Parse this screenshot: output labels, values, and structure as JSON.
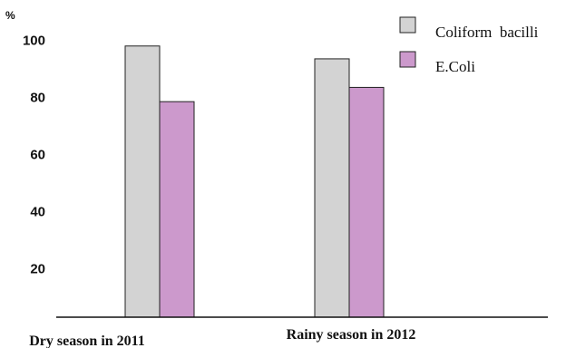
{
  "chart_data": {
    "type": "bar",
    "categories": [
      "Dry season in 2011",
      "Rainy season in 2012"
    ],
    "series": [
      {
        "name": "Coliform  bacilli",
        "color": "#d3d3d3",
        "values": [
          98,
          93.5
        ]
      },
      {
        "name": "E.Coli",
        "color": "#cc99cc",
        "values": [
          78.5,
          83.5
        ]
      }
    ],
    "ylim": [
      3,
      107
    ],
    "yticks": [
      20,
      40,
      60,
      80,
      100
    ],
    "unit_label": "%",
    "title": "",
    "xlabel": "",
    "ylabel": "",
    "grid": false,
    "legend_position": "top-right"
  }
}
